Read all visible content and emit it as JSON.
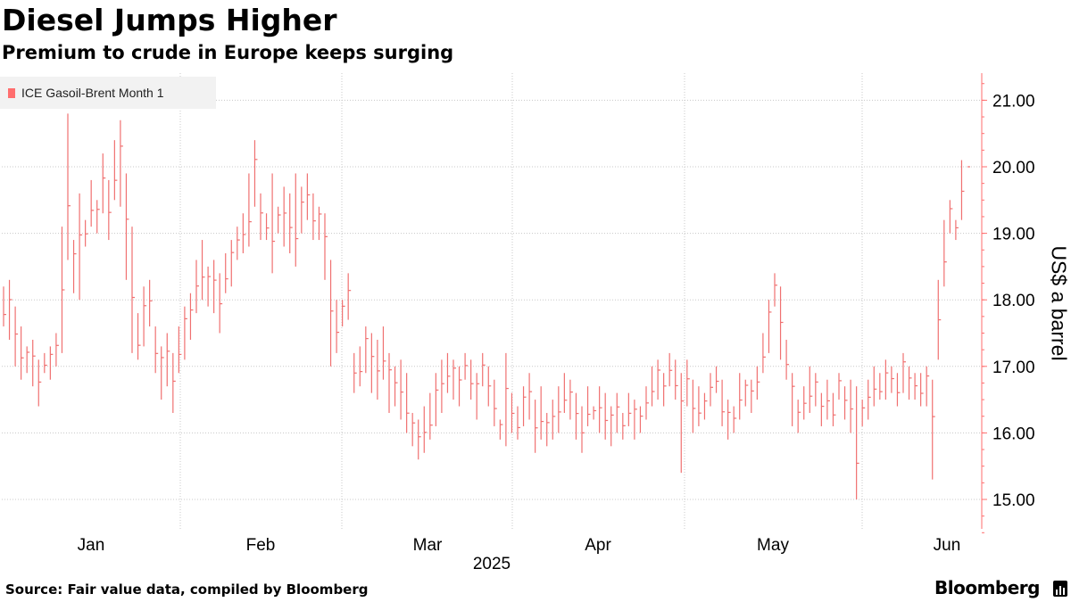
{
  "chart_data": {
    "type": "ohlc",
    "title": "Diesel Jumps Higher",
    "subtitle": "Premium to crude in Europe keeps surging",
    "series": [
      {
        "name": "ICE Gasoil-Brent Month 1",
        "color": "#f07070",
        "bars": [
          [
            18.2,
            17.6
          ],
          [
            18.3,
            17.4
          ],
          [
            17.9,
            17.0
          ],
          [
            17.6,
            16.8
          ],
          [
            17.3,
            16.9
          ],
          [
            17.4,
            16.7
          ],
          [
            17.1,
            16.4
          ],
          [
            17.2,
            16.9
          ],
          [
            17.3,
            16.8
          ],
          [
            17.5,
            17.0
          ],
          [
            19.1,
            17.2
          ],
          [
            20.8,
            18.6
          ],
          [
            18.9,
            18.1
          ],
          [
            19.6,
            18.0
          ],
          [
            19.2,
            18.8
          ],
          [
            19.8,
            19.1
          ],
          [
            19.5,
            19.0
          ],
          [
            20.2,
            19.3
          ],
          [
            19.8,
            18.9
          ],
          [
            20.4,
            19.5
          ],
          [
            20.7,
            19.4
          ],
          [
            19.9,
            18.3
          ],
          [
            19.1,
            17.2
          ],
          [
            17.8,
            17.1
          ],
          [
            18.2,
            17.3
          ],
          [
            18.3,
            17.6
          ],
          [
            17.6,
            16.9
          ],
          [
            17.3,
            16.5
          ],
          [
            17.5,
            16.7
          ],
          [
            17.2,
            16.3
          ],
          [
            17.6,
            16.9
          ],
          [
            17.9,
            17.1
          ],
          [
            18.1,
            17.4
          ],
          [
            18.6,
            17.8
          ],
          [
            18.9,
            18.0
          ],
          [
            18.5,
            17.9
          ],
          [
            18.6,
            17.8
          ],
          [
            18.4,
            17.5
          ],
          [
            18.7,
            18.1
          ],
          [
            18.9,
            18.2
          ],
          [
            19.1,
            18.6
          ],
          [
            19.3,
            18.7
          ],
          [
            19.9,
            18.8
          ],
          [
            20.4,
            19.4
          ],
          [
            19.6,
            18.9
          ],
          [
            19.3,
            18.9
          ],
          [
            19.9,
            18.4
          ],
          [
            19.4,
            19.0
          ],
          [
            19.7,
            18.8
          ],
          [
            19.6,
            18.7
          ],
          [
            19.9,
            18.5
          ],
          [
            19.7,
            19.0
          ],
          [
            19.9,
            19.2
          ],
          [
            19.6,
            18.9
          ],
          [
            19.4,
            18.9
          ],
          [
            19.3,
            18.3
          ],
          [
            18.6,
            17.0
          ],
          [
            18.0,
            17.2
          ],
          [
            18.0,
            17.6
          ],
          [
            18.4,
            17.7
          ],
          [
            17.2,
            16.6
          ],
          [
            17.3,
            16.7
          ],
          [
            17.6,
            16.9
          ],
          [
            17.5,
            16.6
          ],
          [
            17.4,
            16.5
          ],
          [
            17.6,
            16.8
          ],
          [
            17.2,
            16.3
          ],
          [
            17.0,
            16.4
          ],
          [
            17.1,
            16.2
          ],
          [
            16.9,
            16.0
          ],
          [
            16.3,
            15.8
          ],
          [
            16.2,
            15.6
          ],
          [
            16.4,
            15.7
          ],
          [
            16.6,
            15.9
          ],
          [
            16.9,
            16.1
          ],
          [
            17.1,
            16.3
          ],
          [
            17.2,
            16.6
          ],
          [
            17.1,
            16.5
          ],
          [
            17.0,
            16.4
          ],
          [
            17.2,
            16.8
          ],
          [
            17.1,
            16.5
          ],
          [
            16.9,
            16.2
          ],
          [
            17.2,
            16.7
          ],
          [
            17.0,
            16.4
          ],
          [
            16.8,
            16.1
          ],
          [
            16.2,
            15.9
          ],
          [
            17.2,
            15.8
          ],
          [
            16.6,
            16.0
          ],
          [
            16.4,
            15.9
          ],
          [
            16.7,
            16.1
          ],
          [
            16.9,
            16.2
          ],
          [
            16.5,
            15.7
          ],
          [
            16.7,
            15.9
          ],
          [
            16.3,
            15.8
          ],
          [
            16.5,
            15.9
          ],
          [
            16.7,
            16.0
          ],
          [
            16.9,
            16.3
          ],
          [
            16.8,
            16.2
          ],
          [
            16.6,
            15.9
          ],
          [
            16.4,
            15.7
          ],
          [
            16.7,
            16.1
          ],
          [
            16.4,
            16.2
          ],
          [
            16.7,
            16.0
          ],
          [
            16.6,
            15.9
          ],
          [
            16.4,
            15.8
          ],
          [
            16.6,
            16.0
          ],
          [
            16.3,
            15.9
          ],
          [
            16.6,
            16.1
          ],
          [
            16.5,
            15.9
          ],
          [
            16.4,
            16.0
          ],
          [
            16.7,
            16.2
          ],
          [
            17.0,
            16.4
          ],
          [
            17.1,
            16.5
          ],
          [
            16.9,
            16.4
          ],
          [
            17.2,
            16.7
          ],
          [
            17.1,
            16.5
          ],
          [
            16.9,
            15.4
          ],
          [
            17.1,
            16.4
          ],
          [
            16.8,
            16.0
          ],
          [
            16.7,
            16.1
          ],
          [
            16.6,
            16.2
          ],
          [
            16.9,
            16.4
          ],
          [
            17.0,
            16.6
          ],
          [
            16.8,
            16.1
          ],
          [
            16.5,
            15.9
          ],
          [
            16.4,
            16.0
          ],
          [
            16.9,
            16.2
          ],
          [
            16.8,
            16.4
          ],
          [
            16.8,
            16.3
          ],
          [
            17.0,
            16.5
          ],
          [
            17.5,
            16.9
          ],
          [
            18.0,
            17.2
          ],
          [
            18.4,
            17.9
          ],
          [
            18.2,
            17.1
          ],
          [
            17.4,
            16.8
          ],
          [
            16.9,
            16.1
          ],
          [
            16.5,
            16.0
          ],
          [
            16.7,
            16.2
          ],
          [
            17.0,
            16.3
          ],
          [
            16.9,
            16.4
          ],
          [
            16.6,
            16.1
          ],
          [
            16.8,
            16.2
          ],
          [
            16.6,
            16.1
          ],
          [
            16.9,
            16.5
          ],
          [
            16.7,
            16.2
          ],
          [
            16.8,
            16.0
          ],
          [
            16.7,
            15.0
          ],
          [
            16.5,
            16.1
          ],
          [
            16.8,
            16.2
          ],
          [
            17.0,
            16.4
          ],
          [
            16.9,
            16.5
          ],
          [
            17.1,
            16.5
          ],
          [
            17.0,
            16.6
          ],
          [
            16.9,
            16.4
          ],
          [
            17.2,
            16.6
          ],
          [
            17.0,
            16.5
          ],
          [
            16.9,
            16.5
          ],
          [
            16.9,
            16.4
          ],
          [
            17.0,
            16.4
          ],
          [
            16.8,
            15.3
          ],
          [
            18.3,
            17.1
          ],
          [
            19.2,
            18.2
          ],
          [
            19.5,
            19.0
          ],
          [
            19.2,
            18.9
          ],
          [
            20.1,
            19.2
          ],
          [
            20.0,
            20.0
          ]
        ]
      }
    ],
    "x_labels": [
      "Jan",
      "Feb",
      "Mar",
      "Apr",
      "May",
      "Jun"
    ],
    "x_title": "2025",
    "ylabel": "US$ a barrel",
    "ylim": [
      14.5,
      21.4
    ],
    "y_ticks": [
      "15.00",
      "16.00",
      "17.00",
      "18.00",
      "19.00",
      "20.00",
      "21.00"
    ],
    "grid": true,
    "legend_position": "top-left",
    "source": "Source: Fair value data, compiled by Bloomberg",
    "brand": "Bloomberg"
  }
}
